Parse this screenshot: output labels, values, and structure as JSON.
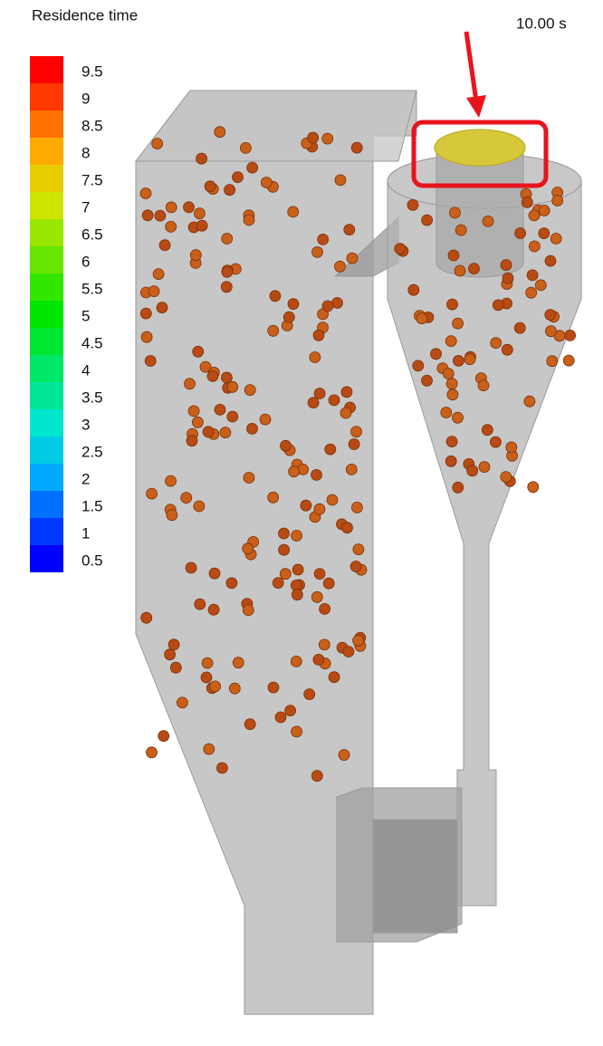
{
  "legend": {
    "title": "Residence time",
    "labels": [
      "9.5",
      "9",
      "8.5",
      "8",
      "7.5",
      "7",
      "6.5",
      "6",
      "5.5",
      "5",
      "4.5",
      "4",
      "3.5",
      "3",
      "2.5",
      "2",
      "1.5",
      "1",
      "0.5"
    ]
  },
  "time": "10.00 s"
}
